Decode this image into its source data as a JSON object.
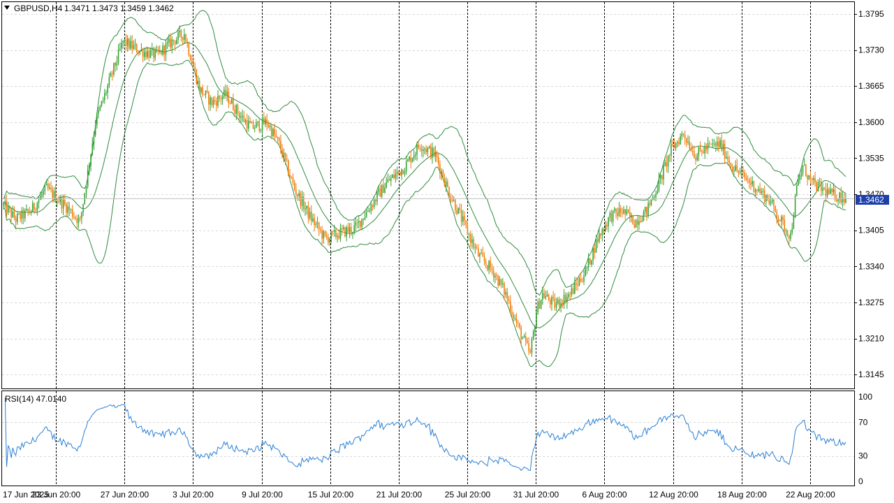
{
  "header": {
    "symbol": "GBPUSD,H4",
    "ohlc": "1.3471 1.3473 1.3459 1.3462"
  },
  "rsi_panel": {
    "label": "RSI(14) 47.0140",
    "levels": [
      "100",
      "70",
      "30",
      "0"
    ]
  },
  "price_axis": {
    "labels": [
      "1.3795",
      "1.3730",
      "1.3665",
      "1.3600",
      "1.3535",
      "1.3470",
      "1.3405",
      "1.3340",
      "1.3275",
      "1.3210",
      "1.3145"
    ],
    "current_price": "1.3462"
  },
  "time_axis": {
    "labels": [
      "17 Jun 2025",
      "23 Jun 20:00",
      "27 Jun 20:00",
      "3 Jul 20:00",
      "9 Jul 20:00",
      "15 Jul 20:00",
      "21 Jul 20:00",
      "25 Jul 20:00",
      "31 Jul 20:00",
      "6 Aug 20:00",
      "12 Aug 20:00",
      "18 Aug 20:00",
      "22 Aug 20:00"
    ]
  },
  "colors": {
    "bull": "#2ea02e",
    "bear": "#f07800",
    "bands": "#2e8b3e",
    "rsi_line": "#2a7fd4",
    "grid": "#d8d8d8",
    "separator": "#000000",
    "price_tag_bg": "#1c3fa8"
  },
  "chart_data": [
    {
      "type": "candlestick",
      "title": "GBPUSD,H4",
      "indicator": "Bollinger Bands",
      "ylim": [
        1.312,
        1.3815
      ],
      "y_ticks": [
        1.3795,
        1.373,
        1.3665,
        1.36,
        1.3535,
        1.347,
        1.3405,
        1.334,
        1.3275,
        1.321,
        1.3145
      ],
      "grid": true,
      "last_price": 1.3462,
      "close_path": [
        [
          0,
          1.345
        ],
        [
          8,
          1.3425
        ],
        [
          18,
          1.344
        ],
        [
          28,
          1.348
        ],
        [
          42,
          1.3445
        ],
        [
          50,
          1.342
        ],
        [
          55,
          1.351
        ],
        [
          60,
          1.36
        ],
        [
          70,
          1.368
        ],
        [
          78,
          1.3745
        ],
        [
          88,
          1.373
        ],
        [
          100,
          1.372
        ],
        [
          110,
          1.3745
        ],
        [
          118,
          1.376
        ],
        [
          122,
          1.372
        ],
        [
          128,
          1.366
        ],
        [
          136,
          1.3635
        ],
        [
          145,
          1.365
        ],
        [
          155,
          1.361
        ],
        [
          162,
          1.359
        ],
        [
          172,
          1.36
        ],
        [
          180,
          1.356
        ],
        [
          190,
          1.348
        ],
        [
          200,
          1.343
        ],
        [
          210,
          1.339
        ],
        [
          220,
          1.34
        ],
        [
          230,
          1.341
        ],
        [
          240,
          1.345
        ],
        [
          250,
          1.349
        ],
        [
          262,
          1.352
        ],
        [
          272,
          1.356
        ],
        [
          282,
          1.354
        ],
        [
          290,
          1.348
        ],
        [
          300,
          1.342
        ],
        [
          310,
          1.336
        ],
        [
          320,
          1.333
        ],
        [
          328,
          1.329
        ],
        [
          336,
          1.323
        ],
        [
          344,
          1.318
        ],
        [
          348,
          1.326
        ],
        [
          352,
          1.329
        ],
        [
          360,
          1.327
        ],
        [
          370,
          1.329
        ],
        [
          380,
          1.333
        ],
        [
          388,
          1.339
        ],
        [
          396,
          1.343
        ],
        [
          404,
          1.344
        ],
        [
          412,
          1.342
        ],
        [
          420,
          1.344
        ],
        [
          428,
          1.349
        ],
        [
          436,
          1.355
        ],
        [
          444,
          1.358
        ],
        [
          452,
          1.354
        ],
        [
          460,
          1.3555
        ],
        [
          468,
          1.356
        ],
        [
          476,
          1.352
        ],
        [
          484,
          1.35
        ],
        [
          492,
          1.348
        ],
        [
          500,
          1.346
        ],
        [
          508,
          1.342
        ],
        [
          514,
          1.3395
        ],
        [
          518,
          1.348
        ],
        [
          522,
          1.352
        ],
        [
          528,
          1.349
        ],
        [
          534,
          1.348
        ],
        [
          540,
          1.347
        ],
        [
          546,
          1.3466
        ],
        [
          550,
          1.3462
        ]
      ],
      "bands_period_bars": 20,
      "bands_deviation": 2
    },
    {
      "type": "line",
      "title": "RSI(14) 47.0140",
      "series": [
        {
          "name": "RSI(14)",
          "last_value": 47.014
        }
      ],
      "ylim": [
        0,
        100
      ],
      "levels": [
        100,
        70,
        30,
        0
      ],
      "grid": true
    }
  ]
}
